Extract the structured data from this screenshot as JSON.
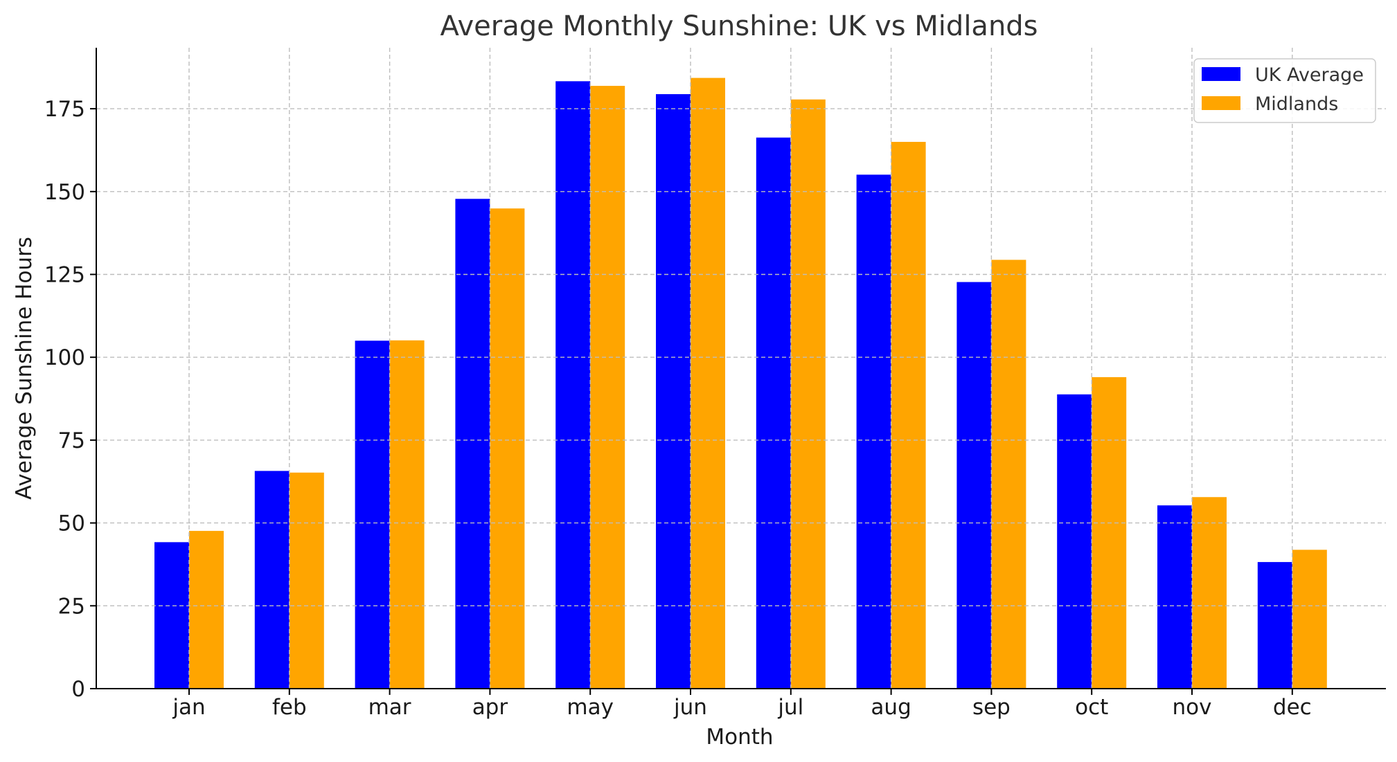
{
  "chart_data": {
    "type": "bar",
    "title": "Average Monthly Sunshine: UK vs Midlands",
    "xlabel": "Month",
    "ylabel": "Average Sunshine Hours",
    "categories": [
      "jan",
      "feb",
      "mar",
      "apr",
      "may",
      "jun",
      "jul",
      "aug",
      "sep",
      "oct",
      "nov",
      "dec"
    ],
    "series": [
      {
        "name": "UK Average",
        "color": "#0000ff",
        "values": [
          44.2,
          65.7,
          105.0,
          147.8,
          183.3,
          179.4,
          166.3,
          155.1,
          122.7,
          88.8,
          55.3,
          38.2
        ]
      },
      {
        "name": "Midlands",
        "color": "#ffa500",
        "values": [
          47.6,
          65.2,
          105.1,
          144.9,
          181.9,
          184.3,
          177.8,
          165.0,
          129.4,
          94.0,
          57.8,
          41.9
        ]
      }
    ],
    "ylim": [
      0,
      193.4
    ],
    "yticks": [
      0,
      25,
      50,
      75,
      100,
      125,
      150,
      175
    ],
    "grid": true,
    "legend_position": "top-right"
  }
}
